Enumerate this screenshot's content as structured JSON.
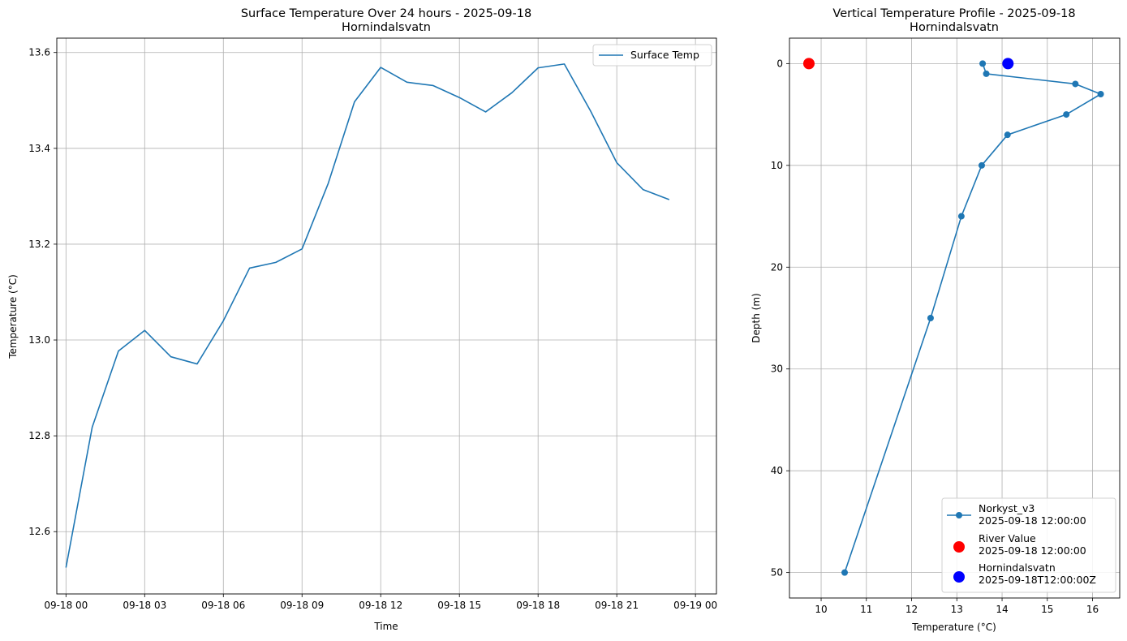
{
  "chart_data": [
    {
      "type": "line",
      "title": "Surface Temperature Over 24 hours - 2025-09-18",
      "subtitle": "Hornindalsvatn",
      "xlabel": "Time",
      "ylabel": "Temperature (°C)",
      "xlim": [
        -0.35,
        24.8
      ],
      "ylim": [
        12.47,
        13.63
      ],
      "grid": true,
      "legend_position": "top-right",
      "x_ticks": [
        {
          "v": 0,
          "label": "09-18 00"
        },
        {
          "v": 3,
          "label": "09-18 03"
        },
        {
          "v": 6,
          "label": "09-18 06"
        },
        {
          "v": 9,
          "label": "09-18 09"
        },
        {
          "v": 12,
          "label": "09-18 12"
        },
        {
          "v": 15,
          "label": "09-18 15"
        },
        {
          "v": 18,
          "label": "09-18 18"
        },
        {
          "v": 21,
          "label": "09-18 21"
        },
        {
          "v": 24,
          "label": "09-19 00"
        }
      ],
      "y_ticks": [
        {
          "v": 12.6,
          "label": "12.6"
        },
        {
          "v": 12.8,
          "label": "12.8"
        },
        {
          "v": 13.0,
          "label": "13.0"
        },
        {
          "v": 13.2,
          "label": "13.2"
        },
        {
          "v": 13.4,
          "label": "13.4"
        },
        {
          "v": 13.6,
          "label": "13.6"
        }
      ],
      "series": [
        {
          "name": "Surface Temp",
          "color": "#1f77b4",
          "x": [
            "09-18 00:00",
            "09-18 01:00",
            "09-18 02:00",
            "09-18 03:00",
            "09-18 04:00",
            "09-18 05:00",
            "09-18 06:00",
            "09-18 07:00",
            "09-18 08:00",
            "09-18 09:00",
            "09-18 10:00",
            "09-18 11:00",
            "09-18 12:00",
            "09-18 13:00",
            "09-18 14:00",
            "09-18 15:00",
            "09-18 16:00",
            "09-18 17:00",
            "09-18 18:00",
            "09-18 19:00",
            "09-18 20:00",
            "09-18 21:00",
            "09-18 22:00",
            "09-18 23:00"
          ],
          "values": [
            12.525,
            12.818,
            12.977,
            13.02,
            12.965,
            12.95,
            13.04,
            13.15,
            13.162,
            13.19,
            13.327,
            13.497,
            13.569,
            13.538,
            13.531,
            13.506,
            13.476,
            13.516,
            13.568,
            13.576,
            13.478,
            13.37,
            13.314,
            13.293
          ]
        }
      ]
    },
    {
      "type": "line",
      "title": "Vertical Temperature Profile - 2025-09-18",
      "subtitle": "Hornindalsvatn",
      "xlabel": "Temperature (°C)",
      "ylabel": "Depth (m)",
      "xlim": [
        9.3,
        16.6
      ],
      "ylim": [
        52.5,
        -2.5
      ],
      "y_inverted": true,
      "grid": true,
      "legend_position": "lower-right",
      "x_ticks": [
        {
          "v": 10,
          "label": "10"
        },
        {
          "v": 11,
          "label": "11"
        },
        {
          "v": 12,
          "label": "12"
        },
        {
          "v": 13,
          "label": "13"
        },
        {
          "v": 14,
          "label": "14"
        },
        {
          "v": 15,
          "label": "15"
        },
        {
          "v": 16,
          "label": "16"
        }
      ],
      "y_ticks": [
        {
          "v": 0,
          "label": "0"
        },
        {
          "v": 10,
          "label": "10"
        },
        {
          "v": 20,
          "label": "20"
        },
        {
          "v": 30,
          "label": "30"
        },
        {
          "v": 40,
          "label": "40"
        },
        {
          "v": 50,
          "label": "50"
        }
      ],
      "series": [
        {
          "name": "Norkyst_v3",
          "name_line2": "2025-09-18 12:00:00",
          "color": "#1f77b4",
          "marker": "circle-line",
          "points": [
            {
              "temp": 13.57,
              "depth": 0
            },
            {
              "temp": 13.65,
              "depth": 1
            },
            {
              "temp": 15.62,
              "depth": 2
            },
            {
              "temp": 16.18,
              "depth": 3
            },
            {
              "temp": 15.42,
              "depth": 5
            },
            {
              "temp": 14.12,
              "depth": 7
            },
            {
              "temp": 13.55,
              "depth": 10
            },
            {
              "temp": 13.1,
              "depth": 15
            },
            {
              "temp": 12.42,
              "depth": 25
            },
            {
              "temp": 10.52,
              "depth": 50
            }
          ]
        },
        {
          "name": "River Value",
          "name_line2": "2025-09-18 12:00:00",
          "color": "#ff0000",
          "marker": "big-dot",
          "points": [
            {
              "temp": 9.73,
              "depth": 0
            }
          ]
        },
        {
          "name": "Hornindalsvatn",
          "name_line2": "2025-09-18T12:00:00Z",
          "color": "#0000ff",
          "marker": "big-dot",
          "points": [
            {
              "temp": 14.13,
              "depth": 0
            }
          ]
        }
      ]
    }
  ]
}
